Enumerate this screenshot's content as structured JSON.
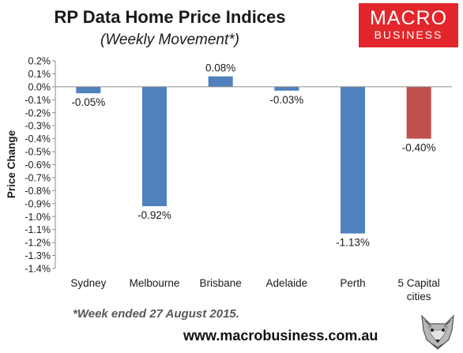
{
  "header": {
    "title": "RP Data Home Price Indices",
    "subtitle": "(Weekly Movement*)"
  },
  "logo": {
    "line1": "MACRO",
    "line2": "BUSINESS"
  },
  "footer": {
    "footnote": "*Week ended 27 August 2015.",
    "url": "www.macrobusiness.com.au"
  },
  "colors": {
    "bar": "#4f81bd",
    "highlight": "#c0504d",
    "logo_bg": "#e3262b"
  },
  "chart_data": {
    "type": "bar",
    "ylabel": "Price Change",
    "ylim": [
      -1.4,
      0.2
    ],
    "ytick_step": 0.1,
    "yticks": [
      "0.2%",
      "0.1%",
      "0.0%",
      "-0.1%",
      "-0.2%",
      "-0.3%",
      "-0.4%",
      "-0.5%",
      "-0.6%",
      "-0.7%",
      "-0.8%",
      "-0.9%",
      "-1.0%",
      "-1.1%",
      "-1.2%",
      "-1.3%",
      "-1.4%"
    ],
    "grid": false,
    "legend": "none",
    "categories": [
      {
        "lines": [
          "Sydney"
        ]
      },
      {
        "lines": [
          "Melbourne"
        ]
      },
      {
        "lines": [
          "Brisbane"
        ]
      },
      {
        "lines": [
          "Adelaide"
        ]
      },
      {
        "lines": [
          "Perth"
        ]
      },
      {
        "lines": [
          "5 Capital",
          "cities"
        ]
      }
    ],
    "values": [
      -0.05,
      -0.92,
      0.08,
      -0.03,
      -1.13,
      -0.4
    ],
    "data_labels": [
      "-0.05%",
      "-0.92%",
      "0.08%",
      "-0.03%",
      "-1.13%",
      "-0.40%"
    ],
    "highlight_index": 5
  }
}
